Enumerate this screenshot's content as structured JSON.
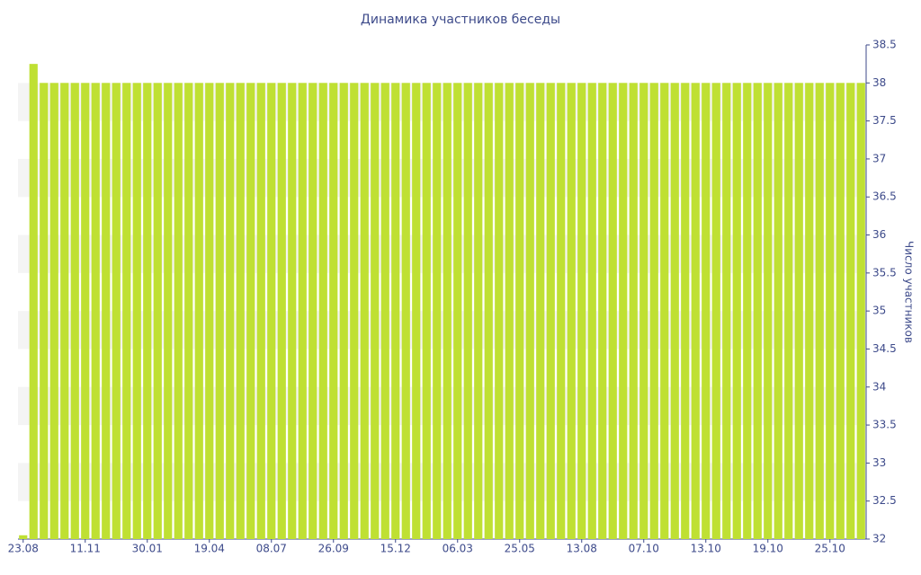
{
  "chart_data": {
    "type": "bar",
    "title": "Динамика участников беседы",
    "y_label": "Число участников",
    "categories": [
      "23.08",
      null,
      null,
      null,
      null,
      null,
      "11.11",
      null,
      null,
      null,
      null,
      null,
      "30.01",
      null,
      null,
      null,
      null,
      null,
      "19.04",
      null,
      null,
      null,
      null,
      null,
      "08.07",
      null,
      null,
      null,
      null,
      null,
      "26.09",
      null,
      null,
      null,
      null,
      null,
      "15.12",
      null,
      null,
      null,
      null,
      null,
      "06.03",
      null,
      null,
      null,
      null,
      null,
      "25.05",
      null,
      null,
      null,
      null,
      null,
      "13.08",
      null,
      null,
      null,
      null,
      null,
      "07.10",
      null,
      null,
      null,
      null,
      null,
      "13.10",
      null,
      null,
      null,
      null,
      null,
      "19.10",
      null,
      null,
      null,
      null,
      null,
      "25.10",
      null,
      null,
      null
    ],
    "values": [
      32.05,
      38.25,
      38,
      38,
      38,
      38,
      38,
      38,
      38,
      38,
      38,
      38,
      38,
      38,
      38,
      38,
      38,
      38,
      38,
      38,
      38,
      38,
      38,
      38,
      38,
      38,
      38,
      38,
      38,
      38,
      38,
      38,
      38,
      38,
      38,
      38,
      38,
      38,
      38,
      38,
      38,
      38,
      38,
      38,
      38,
      38,
      38,
      38,
      38,
      38,
      38,
      38,
      38,
      38,
      38,
      38,
      38,
      38,
      38,
      38,
      38,
      38,
      38,
      38,
      38,
      38,
      38,
      38,
      38,
      38,
      38,
      38,
      38,
      38,
      38,
      38,
      38,
      38,
      38,
      38,
      38,
      38
    ],
    "color": "#bfe033",
    "ylim": [
      32,
      38.5
    ],
    "yticks": [
      32,
      32.5,
      33,
      33.5,
      34,
      34.5,
      35,
      35.5,
      36,
      36.5,
      37,
      37.5,
      38,
      38.5
    ],
    "y_axis_side": "right",
    "grid": true
  }
}
